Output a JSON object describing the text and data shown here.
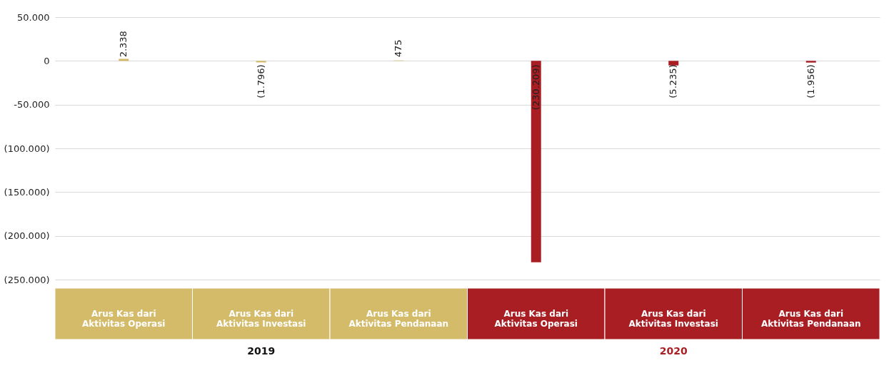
{
  "chart_data": {
    "type": "bar",
    "categories": [
      "Arus Kas dari\nAktivitas Operasi",
      "Arus Kas dari\nAktivitas Investasi",
      "Arus Kas dari\nAktivitas Pendanaan",
      "Arus Kas dari\nAktivitas Operasi",
      "Arus Kas dari\nAktivitas Investasi",
      "Arus Kas dari\nAktivitas Pendanaan"
    ],
    "values": [
      2338,
      -1796,
      475,
      -230209,
      -5235,
      -1956
    ],
    "colors": [
      "#d4bb6a",
      "#d4bb6a",
      "#d4bb6a",
      "#a91e23",
      "#a91e23",
      "#a91e23"
    ],
    "value_labels": [
      "2.338",
      "(1.796)",
      "475",
      "(230.209)",
      "(5.235)",
      "(1.956)"
    ],
    "ylim": [
      -250000,
      50000
    ],
    "yticks": [
      {
        "value": 50000,
        "label": "50.000"
      },
      0,
      {
        "value": -50000,
        "label": "-50.000"
      },
      {
        "value": -100000,
        "label": "(100.000)"
      },
      {
        "value": -150000,
        "label": "(150.000)"
      },
      {
        "value": -200000,
        "label": "(200.000)"
      },
      {
        "value": -250000,
        "label": "(250.000)"
      }
    ],
    "grid": "y",
    "annotations": [
      "2019",
      "2020"
    ]
  }
}
